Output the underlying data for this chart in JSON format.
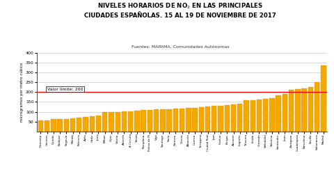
{
  "subtitle": "Fuentes: MAPAMA, Comunidades Autónomas",
  "ylabel": "microgramos por metro cúbico",
  "limit_label": "Valor límite: 200",
  "limit_value": 200,
  "ylim": [
    0,
    400
  ],
  "yticks": [
    50,
    100,
    150,
    200,
    250,
    300,
    350,
    400
  ],
  "bar_color": "#F5A800",
  "bar_edge_color": "#D49000",
  "limit_line_color": "#FF0000",
  "cities": [
    "Donostia",
    "Cáceres",
    "Oviedo",
    "Badajoz",
    "Segovia",
    "Mérida",
    "Palencia",
    "Ávila",
    "Cádiz",
    "Jerez",
    "Bilbao",
    "Gijón",
    "Vitoria",
    "Almería",
    "A Coruña",
    "Toledo",
    "Pamplona",
    "Palma de M.",
    "Vigo",
    "Santiago",
    "Soria",
    "Zamora",
    "Girona",
    "Albacete",
    "Cuenca",
    "Tarragona",
    "Ciudad Real",
    "Jaén",
    "Huelva",
    "Burgos",
    "Alicante",
    "Logroño",
    "Talavera",
    "Lleida",
    "Granada",
    "Valladolid",
    "Valencia",
    "Santander",
    "León",
    "Zaragoza",
    "Guadalajara",
    "Barcelona",
    "Sevilla",
    "Salamanca",
    "Madrid"
  ],
  "values": [
    55,
    58,
    62,
    62,
    65,
    67,
    72,
    75,
    78,
    80,
    100,
    100,
    100,
    102,
    103,
    105,
    108,
    110,
    112,
    112,
    113,
    115,
    118,
    120,
    120,
    125,
    128,
    130,
    132,
    135,
    138,
    140,
    158,
    160,
    162,
    165,
    170,
    185,
    190,
    210,
    215,
    220,
    225,
    250,
    335
  ]
}
